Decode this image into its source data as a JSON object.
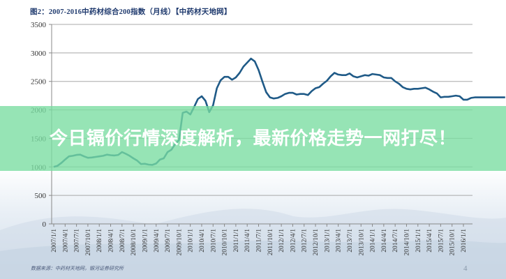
{
  "slide": {
    "chart_title": "图2：2007-2016中药材综合200指数（月线）【中药材天地网】",
    "source_note": "数据来源：中药材天地网，银河证券研究所",
    "page_number": "4"
  },
  "banner": {
    "headline": "今日镉价行情深度解析，最新价格走势一网打尽！",
    "background_color": "#78dca0",
    "text_color": "#ffffff"
  },
  "chart_data": {
    "type": "line",
    "title": "图2：2007-2016中药材综合200指数（月线）【中药材天地网】",
    "xlabel": "",
    "ylabel": "",
    "ylim": [
      0,
      3500
    ],
    "yticks": [
      0,
      500,
      1000,
      1500,
      2000,
      2500,
      3000,
      3500
    ],
    "grid": true,
    "legend": null,
    "line_color": "#1f5a87",
    "categories": [
      "2007/1/1",
      "2007/4/1",
      "2007/7/1",
      "2007/10/1",
      "2008/1/1",
      "2008/4/1",
      "2008/7/1",
      "2008/10/1",
      "2009/1/1",
      "2009/4/1",
      "2009/7/1",
      "2009/10/1",
      "2010/1/1",
      "2010/4/1",
      "2010/7/1",
      "2010/10/1",
      "2011/1/1",
      "2011/4/1",
      "2011/7/1",
      "2011/10/1",
      "2012/1/1",
      "2012/4/1",
      "2012/7/1",
      "2012/10/1",
      "2013/1/1",
      "2013/4/1",
      "2013/7/1",
      "2013/10/1",
      "2014/1/1",
      "2014/4/1",
      "2014/7/1",
      "2014/10/1",
      "2015/1/1",
      "2015/4/1",
      "2015/7/1",
      "2015/10/1",
      "2016/1/1"
    ],
    "series": [
      {
        "name": "中药材综合200指数",
        "x_months_from_2007_01": [
          0,
          1,
          2,
          3,
          4,
          5,
          6,
          7,
          8,
          9,
          10,
          11,
          12,
          13,
          14,
          15,
          16,
          17,
          18,
          19,
          20,
          21,
          22,
          23,
          24,
          25,
          26,
          27,
          28,
          29,
          30,
          31,
          32,
          33,
          34,
          35,
          36,
          37,
          38,
          39,
          40,
          41,
          42,
          43,
          44,
          45,
          46,
          47,
          48,
          49,
          50,
          51,
          52,
          53,
          54,
          55,
          56,
          57,
          58,
          59,
          60,
          61,
          62,
          63,
          64,
          65,
          66,
          67,
          68,
          69,
          70,
          71,
          72,
          73,
          74,
          75,
          76,
          77,
          78,
          79,
          80,
          81,
          82,
          83,
          84,
          85,
          86,
          87,
          88,
          89,
          90,
          91,
          92,
          93,
          94,
          95,
          96,
          97,
          98,
          99,
          100,
          101,
          102,
          103,
          104,
          105,
          106,
          107,
          108,
          109,
          110,
          111,
          112,
          113,
          114,
          115,
          116,
          117,
          118,
          119
        ],
        "values": [
          1000,
          1020,
          1070,
          1130,
          1185,
          1195,
          1210,
          1215,
          1185,
          1160,
          1165,
          1175,
          1185,
          1195,
          1215,
          1205,
          1200,
          1210,
          1260,
          1230,
          1195,
          1150,
          1110,
          1050,
          1055,
          1040,
          1035,
          1060,
          1130,
          1150,
          1260,
          1300,
          1400,
          1470,
          1950,
          1970,
          1920,
          2050,
          2190,
          2240,
          2160,
          1960,
          2080,
          2380,
          2520,
          2580,
          2580,
          2530,
          2570,
          2650,
          2760,
          2830,
          2900,
          2850,
          2700,
          2500,
          2310,
          2220,
          2200,
          2210,
          2240,
          2280,
          2300,
          2300,
          2270,
          2280,
          2280,
          2260,
          2330,
          2380,
          2400,
          2460,
          2510,
          2590,
          2650,
          2620,
          2610,
          2610,
          2640,
          2590,
          2570,
          2590,
          2610,
          2600,
          2630,
          2620,
          2610,
          2570,
          2560,
          2560,
          2500,
          2460,
          2400,
          2370,
          2360,
          2370,
          2370,
          2380,
          2390,
          2360,
          2320,
          2290,
          2220,
          2230,
          2230,
          2240,
          2250,
          2240,
          2180,
          2180,
          2210,
          2220,
          2220,
          2220,
          2220,
          2220,
          2220,
          2220,
          2220,
          2220
        ],
        "color_rising_segment": "#2e9a78",
        "color_main": "#1f5a87"
      }
    ]
  }
}
